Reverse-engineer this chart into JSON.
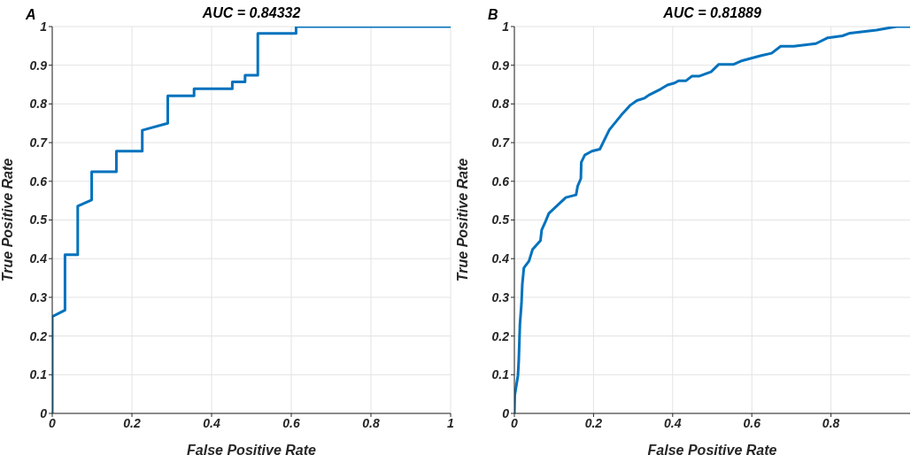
{
  "chart_data": [
    {
      "type": "line",
      "title": "AUC = 0.84332",
      "xlabel": "False Positive Rate",
      "ylabel": "True Positive Rate",
      "annotations": [
        "A"
      ],
      "grid": true,
      "xlim": [
        0,
        1
      ],
      "ylim": [
        0,
        1
      ],
      "xticks": [
        0,
        0.2,
        0.4,
        0.6,
        0.8,
        1
      ],
      "yticks": [
        0,
        0.1,
        0.2,
        0.3,
        0.4,
        0.5,
        0.6,
        0.7,
        0.8,
        0.9,
        1
      ],
      "x": [
        0,
        0,
        0.032,
        0.032,
        0.064,
        0.064,
        0.099,
        0.099,
        0.161,
        0.161,
        0.226,
        0.226,
        0.29,
        0.29,
        0.356,
        0.356,
        0.452,
        0.452,
        0.484,
        0.484,
        0.516,
        0.516,
        0.612,
        0.612,
        1
      ],
      "series": [
        {
          "color": "#0072bd",
          "values": [
            0,
            0.25,
            0.267,
            0.41,
            0.41,
            0.536,
            0.552,
            0.625,
            0.625,
            0.678,
            0.678,
            0.732,
            0.75,
            0.821,
            0.821,
            0.839,
            0.839,
            0.857,
            0.857,
            0.874,
            0.874,
            0.982,
            0.982,
            1,
            1
          ]
        }
      ]
    },
    {
      "type": "line",
      "title": "AUC = 0.81889",
      "xlabel": "False Positive Rate",
      "ylabel": "True Positive Rate",
      "annotations": [
        "B"
      ],
      "grid": true,
      "xlim": [
        0,
        1
      ],
      "ylim": [
        0,
        1
      ],
      "xticks": [
        0,
        0.2,
        0.4,
        0.6,
        0.8
      ],
      "yticks": [
        0,
        0.1,
        0.2,
        0.3,
        0.4,
        0.5,
        0.6,
        0.7,
        0.8,
        0.9,
        1
      ],
      "x": [
        0,
        0.001,
        0.009,
        0.011,
        0.014,
        0.018,
        0.02,
        0.024,
        0.037,
        0.046,
        0.066,
        0.069,
        0.079,
        0.087,
        0.112,
        0.13,
        0.156,
        0.16,
        0.168,
        0.169,
        0.178,
        0.196,
        0.216,
        0.24,
        0.27,
        0.292,
        0.31,
        0.329,
        0.34,
        0.369,
        0.387,
        0.405,
        0.415,
        0.434,
        0.449,
        0.468,
        0.497,
        0.516,
        0.553,
        0.576,
        0.624,
        0.65,
        0.673,
        0.706,
        0.762,
        0.792,
        0.829,
        0.848,
        0.915,
        0.966,
        1
      ],
      "series": [
        {
          "color": "#0072bd",
          "values": [
            0,
            0.047,
            0.098,
            0.134,
            0.23,
            0.285,
            0.333,
            0.376,
            0.394,
            0.424,
            0.447,
            0.474,
            0.497,
            0.517,
            0.541,
            0.558,
            0.565,
            0.588,
            0.607,
            0.649,
            0.668,
            0.678,
            0.683,
            0.733,
            0.771,
            0.796,
            0.809,
            0.815,
            0.823,
            0.838,
            0.849,
            0.854,
            0.86,
            0.86,
            0.872,
            0.872,
            0.883,
            0.902,
            0.902,
            0.912,
            0.925,
            0.931,
            0.949,
            0.949,
            0.956,
            0.971,
            0.976,
            0.983,
            0.991,
            1,
            1
          ]
        }
      ]
    }
  ]
}
